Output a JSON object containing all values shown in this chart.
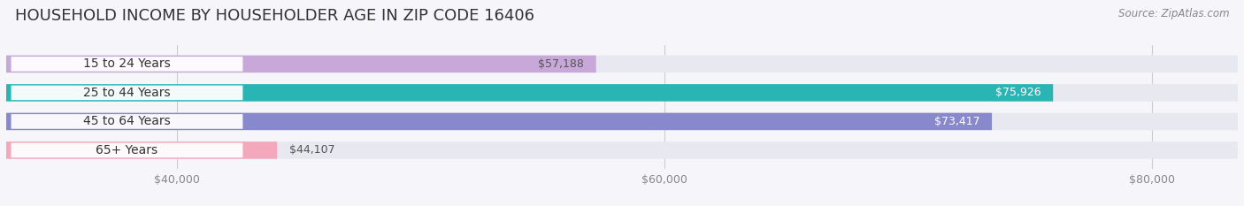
{
  "title": "HOUSEHOLD INCOME BY HOUSEHOLDER AGE IN ZIP CODE 16406",
  "source": "Source: ZipAtlas.com",
  "categories": [
    "15 to 24 Years",
    "25 to 44 Years",
    "45 to 64 Years",
    "65+ Years"
  ],
  "values": [
    57188,
    75926,
    73417,
    44107
  ],
  "bar_colors": [
    "#c8a8d8",
    "#2ab5b5",
    "#8888cc",
    "#f4a8bc"
  ],
  "bar_labels": [
    "$57,188",
    "$75,926",
    "$73,417",
    "$44,107"
  ],
  "label_colors_inside": [
    "#555555",
    "#ffffff",
    "#ffffff",
    "#555555"
  ],
  "xlim_min": 0,
  "xlim_max": 83000,
  "xticks": [
    40000,
    60000,
    80000
  ],
  "xtick_labels": [
    "$40,000",
    "$60,000",
    "$80,000"
  ],
  "background_color": "#f5f5fa",
  "bar_bg_color": "#e8e8f0",
  "bar_height": 0.6,
  "title_fontsize": 13,
  "source_fontsize": 8.5,
  "tick_fontsize": 9,
  "label_fontsize": 9,
  "category_fontsize": 10,
  "label_pill_color": "#ffffff",
  "label_pill_edge_color": "#ddddee"
}
